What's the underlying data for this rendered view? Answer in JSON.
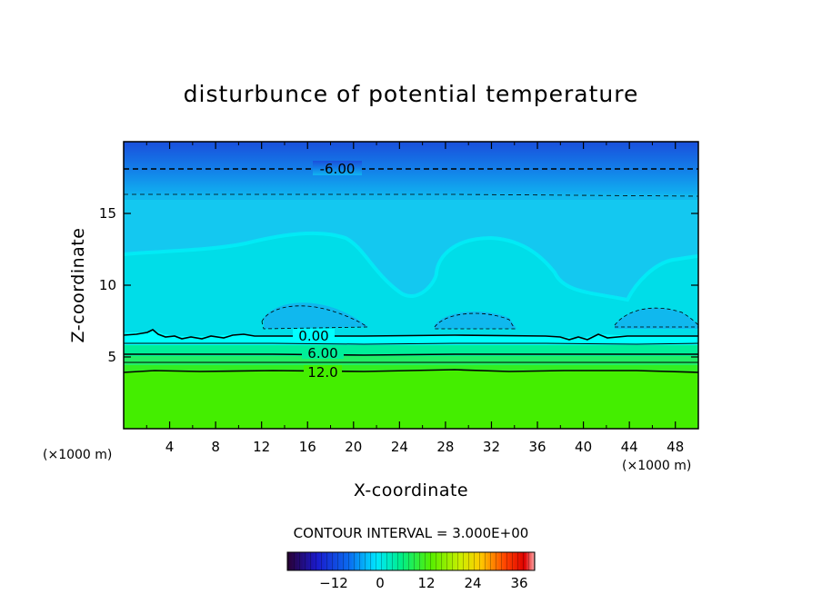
{
  "chart_data": {
    "type": "heatmap",
    "title": "disturbunce of potential temperature",
    "xlabel": "X-coordinate",
    "ylabel": "Z-coordinate",
    "x_unit": "(×1000 m)",
    "z_unit": "(×1000 m)",
    "xlim": [
      0,
      50
    ],
    "ylim": [
      0,
      20
    ],
    "x_ticks": [
      4,
      8,
      12,
      16,
      20,
      24,
      28,
      32,
      36,
      40,
      44,
      48
    ],
    "y_ticks": [
      5,
      10,
      15
    ],
    "contour_interval_text": "CONTOUR INTERVAL = 3.000E+00",
    "contours": [
      {
        "label": "-6.00",
        "z": 18.2,
        "x": 18.8,
        "style": "dashed"
      },
      {
        "label": "0.00",
        "z": 6.5,
        "x": 16.5,
        "style": "solid"
      },
      {
        "label": "6.00",
        "z": 5.3,
        "x": 17.2,
        "style": "solid"
      },
      {
        "label": "12.0",
        "z": 4.0,
        "x": 17.2,
        "style": "solid"
      }
    ],
    "colorbar": {
      "range": [
        -24,
        40
      ],
      "ticks": [
        -12,
        0,
        12,
        24,
        36
      ]
    },
    "colors": {
      "band_top": "#1a5ce6",
      "band_upper": "#14aaee",
      "band_mid": "#00ddee",
      "band_cyan": "#00ffff",
      "band_low1": "#00ee99",
      "band_low2": "#33ee66",
      "band_green": "#44ee00"
    }
  }
}
